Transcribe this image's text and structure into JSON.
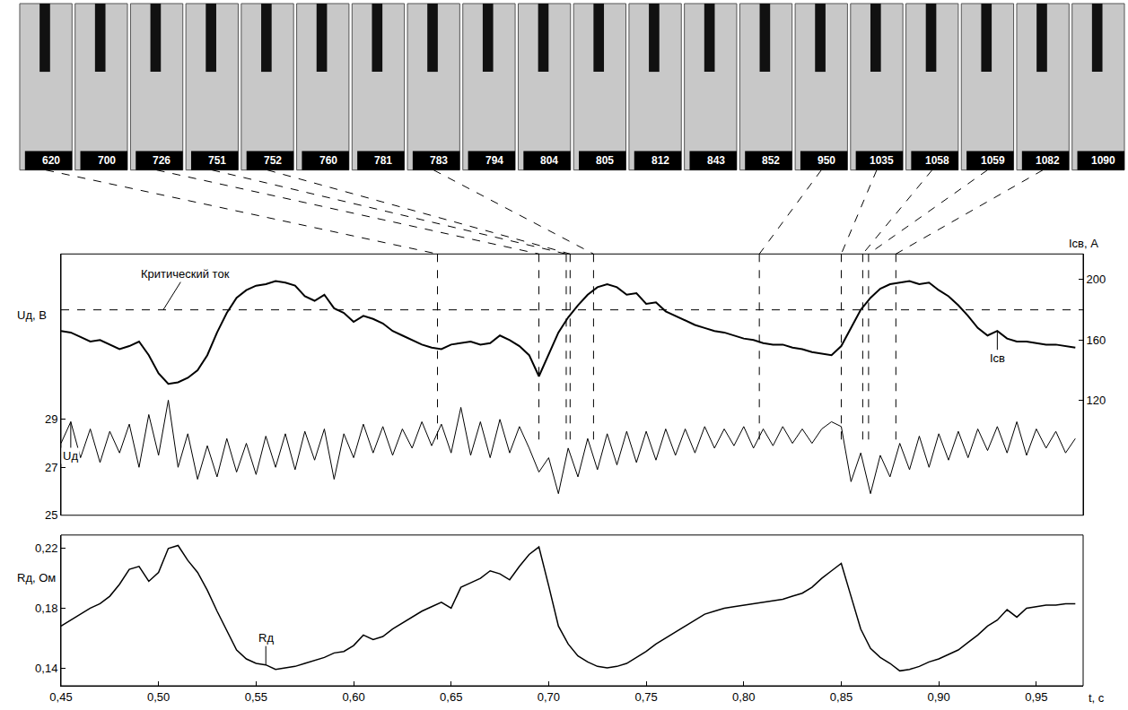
{
  "photo_strip": {
    "frames": [
      {
        "label": "620",
        "t": 0.643
      },
      {
        "label": "700",
        "t": null
      },
      {
        "label": "726",
        "t": 0.695
      },
      {
        "label": "751",
        "t": 0.709
      },
      {
        "label": "752",
        "t": 0.711
      },
      {
        "label": "760",
        "t": null
      },
      {
        "label": "781",
        "t": null
      },
      {
        "label": "783",
        "t": 0.723
      },
      {
        "label": "794",
        "t": null
      },
      {
        "label": "804",
        "t": null
      },
      {
        "label": "805",
        "t": null
      },
      {
        "label": "812",
        "t": null
      },
      {
        "label": "843",
        "t": null
      },
      {
        "label": "852",
        "t": null
      },
      {
        "label": "950",
        "t": 0.808
      },
      {
        "label": "1035",
        "t": 0.85
      },
      {
        "label": "1058",
        "t": 0.861
      },
      {
        "label": "1059",
        "t": 0.864
      },
      {
        "label": "1082",
        "t": 0.878
      },
      {
        "label": "1090",
        "t": null
      }
    ]
  },
  "chart_data": [
    {
      "type": "line",
      "x": [
        0.45,
        0.455,
        0.46,
        0.465,
        0.47,
        0.475,
        0.48,
        0.485,
        0.49,
        0.495,
        0.5,
        0.505,
        0.51,
        0.515,
        0.52,
        0.525,
        0.53,
        0.535,
        0.54,
        0.545,
        0.55,
        0.555,
        0.56,
        0.565,
        0.57,
        0.575,
        0.58,
        0.585,
        0.59,
        0.595,
        0.6,
        0.605,
        0.61,
        0.615,
        0.62,
        0.625,
        0.63,
        0.635,
        0.64,
        0.645,
        0.65,
        0.655,
        0.66,
        0.665,
        0.67,
        0.675,
        0.68,
        0.685,
        0.69,
        0.695,
        0.7,
        0.705,
        0.71,
        0.715,
        0.72,
        0.725,
        0.73,
        0.735,
        0.74,
        0.745,
        0.75,
        0.755,
        0.76,
        0.765,
        0.77,
        0.775,
        0.78,
        0.785,
        0.79,
        0.795,
        0.8,
        0.805,
        0.81,
        0.815,
        0.82,
        0.825,
        0.83,
        0.835,
        0.84,
        0.845,
        0.85,
        0.855,
        0.86,
        0.865,
        0.87,
        0.875,
        0.88,
        0.885,
        0.89,
        0.895,
        0.9,
        0.905,
        0.91,
        0.915,
        0.92,
        0.925,
        0.93,
        0.935,
        0.94,
        0.945,
        0.95,
        0.955,
        0.96,
        0.965,
        0.97
      ],
      "xlim": [
        0.45,
        0.974
      ],
      "ylim": [
        25,
        35.9
      ],
      "yticks": [
        25,
        27,
        29
      ],
      "y_label": "Uд, В",
      "y2lim": [
        44,
        217
      ],
      "y2ticks": [
        120,
        160,
        200
      ],
      "y2_label": "Iсв, А",
      "grid": false,
      "tick_labels": "y",
      "series": [
        {
          "name": "Uд",
          "color": "#000000",
          "axis": "y",
          "values": [
            28.0,
            28.9,
            27.4,
            28.6,
            27.2,
            28.5,
            27.6,
            28.8,
            27.0,
            29.2,
            27.5,
            29.8,
            27.0,
            28.4,
            26.5,
            27.9,
            26.6,
            28.2,
            26.8,
            28.0,
            26.7,
            28.3,
            27.0,
            28.4,
            26.9,
            28.5,
            27.3,
            28.6,
            26.5,
            28.4,
            27.4,
            28.8,
            27.6,
            28.7,
            27.5,
            28.6,
            27.8,
            28.9,
            27.9,
            28.8,
            27.6,
            29.5,
            27.5,
            28.9,
            27.4,
            29.0,
            27.6,
            28.7,
            27.8,
            26.8,
            27.4,
            25.9,
            27.8,
            26.6,
            28.2,
            26.9,
            28.4,
            27.1,
            28.5,
            27.2,
            28.5,
            27.3,
            28.6,
            27.5,
            28.6,
            27.6,
            28.7,
            27.8,
            28.6,
            27.9,
            28.7,
            27.8,
            28.6,
            27.9,
            28.7,
            28.0,
            28.6,
            28.0,
            28.6,
            28.9,
            28.7,
            26.4,
            27.6,
            25.9,
            27.5,
            26.6,
            28.0,
            26.9,
            28.3,
            27.0,
            28.4,
            27.3,
            28.5,
            27.4,
            28.6,
            27.7,
            28.7,
            27.6,
            28.9,
            27.5,
            28.6,
            27.8,
            28.5,
            27.6,
            28.2
          ]
        },
        {
          "name": "Iсв",
          "color": "#000000",
          "axis": "y2",
          "values": [
            166,
            165,
            162,
            159,
            160,
            157,
            154,
            156,
            159,
            150,
            138,
            131,
            132,
            135,
            140,
            150,
            165,
            178,
            188,
            193,
            196,
            197,
            199,
            198,
            196,
            189,
            186,
            190,
            181,
            178,
            172,
            176,
            174,
            171,
            166,
            163,
            160,
            157,
            155,
            154,
            157,
            158,
            159,
            157,
            158,
            163,
            160,
            156,
            150,
            136,
            150,
            165,
            175,
            183,
            190,
            195,
            197,
            195,
            190,
            191,
            184,
            185,
            179,
            176,
            173,
            170,
            168,
            166,
            165,
            163,
            161,
            160,
            158,
            157,
            157,
            155,
            154,
            152,
            151,
            150,
            156,
            168,
            180,
            188,
            194,
            197,
            198,
            199,
            197,
            198,
            193,
            189,
            183,
            176,
            168,
            163,
            166,
            161,
            159,
            159,
            158,
            157,
            157,
            156,
            155
          ]
        }
      ],
      "reference_line": {
        "axis": "y2",
        "value": 180,
        "label": "Критический ток",
        "line_style": "dashed"
      }
    },
    {
      "type": "line",
      "x": [
        0.45,
        0.455,
        0.46,
        0.465,
        0.47,
        0.475,
        0.48,
        0.485,
        0.49,
        0.495,
        0.5,
        0.505,
        0.51,
        0.515,
        0.52,
        0.525,
        0.53,
        0.535,
        0.54,
        0.545,
        0.55,
        0.555,
        0.56,
        0.565,
        0.57,
        0.575,
        0.58,
        0.585,
        0.59,
        0.595,
        0.6,
        0.605,
        0.61,
        0.615,
        0.62,
        0.625,
        0.63,
        0.635,
        0.64,
        0.645,
        0.65,
        0.655,
        0.66,
        0.665,
        0.67,
        0.675,
        0.68,
        0.685,
        0.69,
        0.695,
        0.7,
        0.705,
        0.71,
        0.715,
        0.72,
        0.725,
        0.73,
        0.735,
        0.74,
        0.745,
        0.75,
        0.755,
        0.76,
        0.765,
        0.77,
        0.775,
        0.78,
        0.785,
        0.79,
        0.795,
        0.8,
        0.805,
        0.81,
        0.815,
        0.82,
        0.825,
        0.83,
        0.835,
        0.84,
        0.845,
        0.85,
        0.855,
        0.86,
        0.865,
        0.87,
        0.875,
        0.88,
        0.885,
        0.89,
        0.895,
        0.9,
        0.905,
        0.91,
        0.915,
        0.92,
        0.925,
        0.93,
        0.935,
        0.94,
        0.945,
        0.95,
        0.955,
        0.96,
        0.965,
        0.97
      ],
      "xlim": [
        0.45,
        0.974
      ],
      "xticks": [
        {
          "value": 0.45,
          "label": "0,45"
        },
        {
          "value": 0.5,
          "label": "0,50"
        },
        {
          "value": 0.55,
          "label": "0,55"
        },
        {
          "value": 0.6,
          "label": "0,60"
        },
        {
          "value": 0.65,
          "label": "0,65"
        },
        {
          "value": 0.7,
          "label": "0,70"
        },
        {
          "value": 0.75,
          "label": "0,75"
        },
        {
          "value": 0.8,
          "label": "0,80"
        },
        {
          "value": 0.85,
          "label": "0,85"
        },
        {
          "value": 0.9,
          "label": "0,90"
        },
        {
          "value": 0.95,
          "label": "0,95"
        }
      ],
      "x_label": "t, с",
      "ylim": [
        0.128,
        0.229
      ],
      "yticks": [
        {
          "value": 0.14,
          "label": "0,14"
        },
        {
          "value": 0.18,
          "label": "0,18"
        },
        {
          "value": 0.22,
          "label": "0,22"
        }
      ],
      "y_label": "Rд, Ом",
      "grid": false,
      "series": [
        {
          "name": "Rд",
          "color": "#000000",
          "values": [
            0.168,
            0.172,
            0.176,
            0.18,
            0.183,
            0.188,
            0.196,
            0.206,
            0.208,
            0.198,
            0.204,
            0.22,
            0.222,
            0.212,
            0.204,
            0.192,
            0.178,
            0.165,
            0.152,
            0.146,
            0.143,
            0.142,
            0.139,
            0.14,
            0.141,
            0.143,
            0.145,
            0.147,
            0.15,
            0.151,
            0.155,
            0.162,
            0.159,
            0.161,
            0.166,
            0.17,
            0.174,
            0.178,
            0.181,
            0.184,
            0.18,
            0.194,
            0.197,
            0.2,
            0.205,
            0.203,
            0.199,
            0.208,
            0.216,
            0.221,
            0.195,
            0.168,
            0.156,
            0.148,
            0.144,
            0.141,
            0.14,
            0.141,
            0.143,
            0.147,
            0.151,
            0.156,
            0.16,
            0.164,
            0.168,
            0.172,
            0.176,
            0.178,
            0.18,
            0.181,
            0.182,
            0.183,
            0.184,
            0.185,
            0.186,
            0.188,
            0.19,
            0.194,
            0.2,
            0.205,
            0.21,
            0.188,
            0.166,
            0.153,
            0.147,
            0.143,
            0.138,
            0.139,
            0.141,
            0.144,
            0.146,
            0.149,
            0.152,
            0.157,
            0.162,
            0.168,
            0.172,
            0.179,
            0.174,
            0.18,
            0.181,
            0.182,
            0.182,
            0.183,
            0.183
          ]
        }
      ]
    }
  ]
}
